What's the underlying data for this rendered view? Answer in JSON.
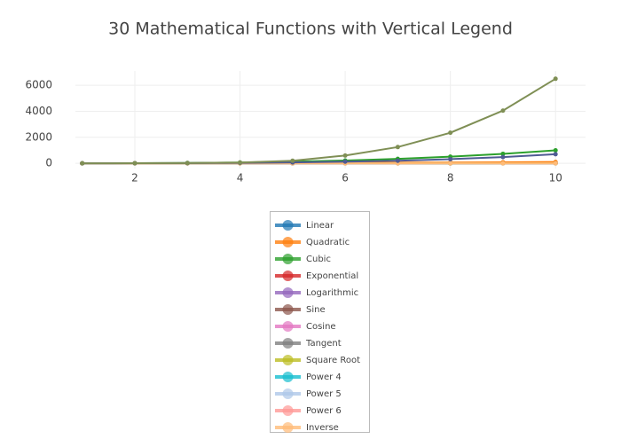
{
  "chart_data": {
    "type": "line",
    "title": "30 Mathematical Functions with Vertical Legend",
    "x": [
      1,
      2,
      3,
      4,
      5,
      6,
      7,
      8,
      9,
      10
    ],
    "xlim": [
      0.87,
      10.57
    ],
    "xticks": [
      2,
      4,
      6,
      8,
      10
    ],
    "ylim": [
      -400,
      7100
    ],
    "yticks": [
      0,
      2000,
      4000,
      6000
    ],
    "grid": true,
    "legend": "bottom",
    "series": [
      {
        "name": "Linear",
        "color": "#1f77b4",
        "values": [
          1,
          2,
          3,
          4,
          5,
          6,
          7,
          8,
          9,
          10
        ]
      },
      {
        "name": "Quadratic",
        "color": "#ff7f0e",
        "values": [
          1,
          4,
          9,
          16,
          25,
          36,
          49,
          64,
          81,
          100
        ]
      },
      {
        "name": "Cubic",
        "color": "#2ca02c",
        "values": [
          1,
          8,
          27,
          64,
          125,
          216,
          343,
          512,
          729,
          1000
        ]
      },
      {
        "name": "Exponential",
        "color": "#d62728",
        "values": [
          null,
          null,
          null,
          null,
          null,
          null,
          null,
          null,
          null,
          null
        ]
      },
      {
        "name": "Logarithmic",
        "color": "#9467bd",
        "values": [
          0,
          0.69,
          1.1,
          1.39,
          1.61,
          1.79,
          1.95,
          2.08,
          2.2,
          2.3
        ]
      },
      {
        "name": "Sine",
        "color": "#8c564b",
        "values": [
          0.84,
          0.91,
          0.14,
          -0.76,
          -0.96,
          -0.28,
          0.66,
          0.99,
          0.41,
          -0.54
        ]
      },
      {
        "name": "Cosine",
        "color": "#e377c2",
        "values": [
          0.54,
          -0.42,
          -0.99,
          -0.65,
          0.28,
          0.96,
          0.75,
          -0.15,
          -0.91,
          -0.84
        ]
      },
      {
        "name": "Tangent",
        "color": "#7f7f7f",
        "values": [
          1.56,
          -2.19,
          -0.14,
          1.16,
          -3.38,
          -0.29,
          0.87,
          -6.8,
          -0.45,
          0.65
        ]
      },
      {
        "name": "Square Root",
        "color": "#bcbd22",
        "values": [
          1,
          1.41,
          1.73,
          2,
          2.24,
          2.45,
          2.65,
          2.83,
          3,
          3.16
        ]
      },
      {
        "name": "Power 4",
        "color": "#17becf",
        "values": [
          null,
          null,
          null,
          null,
          null,
          null,
          null,
          null,
          null,
          null
        ]
      },
      {
        "name": "Power 5",
        "color": "#aec7e8",
        "values": [
          null,
          null,
          null,
          null,
          null,
          null,
          null,
          null,
          null,
          null
        ]
      },
      {
        "name": "Power 6",
        "color": "#ff9896",
        "values": [
          null,
          null,
          null,
          null,
          null,
          null,
          null,
          null,
          null,
          null
        ]
      },
      {
        "name": "Inverse",
        "color": "#ffbb78",
        "values": [
          1,
          0.5,
          0.33,
          0.25,
          0.2,
          0.17,
          0.14,
          0.13,
          0.11,
          0.1
        ]
      },
      {
        "color": "#4f5b93",
        "values": [
          0,
          5,
          15,
          35,
          70,
          130,
          200,
          320,
          480,
          700
        ]
      },
      {
        "color": "#7f8f55",
        "values": [
          0,
          5,
          20,
          60,
          200,
          600,
          1250,
          2350,
          4050,
          6500
        ]
      }
    ]
  }
}
